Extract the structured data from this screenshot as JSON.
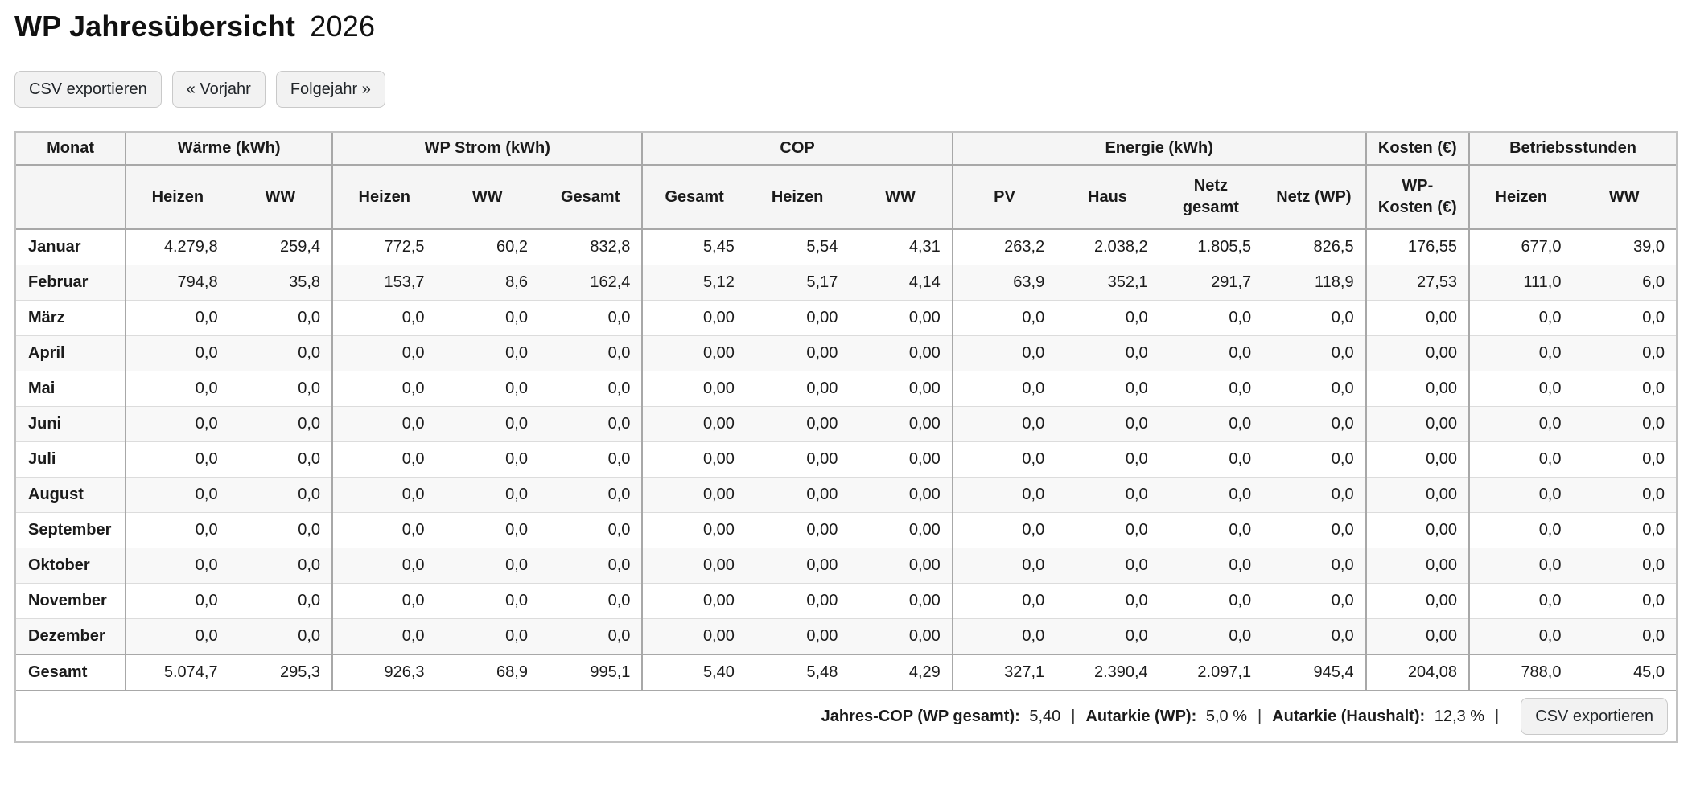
{
  "page": {
    "title_main": "WP Jahresübersicht",
    "title_year": "2026"
  },
  "toolbar": {
    "export_csv_label": "CSV exportieren",
    "prev_year_label": "« Vorjahr",
    "next_year_label": "Folgejahr »"
  },
  "table": {
    "group_headers": [
      {
        "label": "Monat",
        "colspan": 1
      },
      {
        "label": "Wärme (kWh)",
        "colspan": 2
      },
      {
        "label": "WP Strom (kWh)",
        "colspan": 3
      },
      {
        "label": "COP",
        "colspan": 3
      },
      {
        "label": "Energie (kWh)",
        "colspan": 4
      },
      {
        "label": "Kosten (€)",
        "colspan": 1
      },
      {
        "label": "Betriebsstunden",
        "colspan": 2
      }
    ],
    "sub_headers": [
      "",
      "Heizen",
      "WW",
      "Heizen",
      "WW",
      "Gesamt",
      "Gesamt",
      "Heizen",
      "WW",
      "PV",
      "Haus",
      "Netz gesamt",
      "Netz (WP)",
      "WP-Kosten (€)",
      "Heizen",
      "WW"
    ],
    "rows": [
      {
        "month": "Januar",
        "values": [
          "4.279,8",
          "259,4",
          "772,5",
          "60,2",
          "832,8",
          "5,45",
          "5,54",
          "4,31",
          "263,2",
          "2.038,2",
          "1.805,5",
          "826,5",
          "176,55",
          "677,0",
          "39,0"
        ]
      },
      {
        "month": "Februar",
        "values": [
          "794,8",
          "35,8",
          "153,7",
          "8,6",
          "162,4",
          "5,12",
          "5,17",
          "4,14",
          "63,9",
          "352,1",
          "291,7",
          "118,9",
          "27,53",
          "111,0",
          "6,0"
        ]
      },
      {
        "month": "März",
        "values": [
          "0,0",
          "0,0",
          "0,0",
          "0,0",
          "0,0",
          "0,00",
          "0,00",
          "0,00",
          "0,0",
          "0,0",
          "0,0",
          "0,0",
          "0,00",
          "0,0",
          "0,0"
        ]
      },
      {
        "month": "April",
        "values": [
          "0,0",
          "0,0",
          "0,0",
          "0,0",
          "0,0",
          "0,00",
          "0,00",
          "0,00",
          "0,0",
          "0,0",
          "0,0",
          "0,0",
          "0,00",
          "0,0",
          "0,0"
        ]
      },
      {
        "month": "Mai",
        "values": [
          "0,0",
          "0,0",
          "0,0",
          "0,0",
          "0,0",
          "0,00",
          "0,00",
          "0,00",
          "0,0",
          "0,0",
          "0,0",
          "0,0",
          "0,00",
          "0,0",
          "0,0"
        ]
      },
      {
        "month": "Juni",
        "values": [
          "0,0",
          "0,0",
          "0,0",
          "0,0",
          "0,0",
          "0,00",
          "0,00",
          "0,00",
          "0,0",
          "0,0",
          "0,0",
          "0,0",
          "0,00",
          "0,0",
          "0,0"
        ]
      },
      {
        "month": "Juli",
        "values": [
          "0,0",
          "0,0",
          "0,0",
          "0,0",
          "0,0",
          "0,00",
          "0,00",
          "0,00",
          "0,0",
          "0,0",
          "0,0",
          "0,0",
          "0,00",
          "0,0",
          "0,0"
        ]
      },
      {
        "month": "August",
        "values": [
          "0,0",
          "0,0",
          "0,0",
          "0,0",
          "0,0",
          "0,00",
          "0,00",
          "0,00",
          "0,0",
          "0,0",
          "0,0",
          "0,0",
          "0,00",
          "0,0",
          "0,0"
        ]
      },
      {
        "month": "September",
        "values": [
          "0,0",
          "0,0",
          "0,0",
          "0,0",
          "0,0",
          "0,00",
          "0,00",
          "0,00",
          "0,0",
          "0,0",
          "0,0",
          "0,0",
          "0,00",
          "0,0",
          "0,0"
        ]
      },
      {
        "month": "Oktober",
        "values": [
          "0,0",
          "0,0",
          "0,0",
          "0,0",
          "0,0",
          "0,00",
          "0,00",
          "0,00",
          "0,0",
          "0,0",
          "0,0",
          "0,0",
          "0,00",
          "0,0",
          "0,0"
        ]
      },
      {
        "month": "November",
        "values": [
          "0,0",
          "0,0",
          "0,0",
          "0,0",
          "0,0",
          "0,00",
          "0,00",
          "0,00",
          "0,0",
          "0,0",
          "0,0",
          "0,0",
          "0,00",
          "0,0",
          "0,0"
        ]
      },
      {
        "month": "Dezember",
        "values": [
          "0,0",
          "0,0",
          "0,0",
          "0,0",
          "0,0",
          "0,00",
          "0,00",
          "0,00",
          "0,0",
          "0,0",
          "0,0",
          "0,0",
          "0,00",
          "0,0",
          "0,0"
        ]
      }
    ],
    "total_row": {
      "month": "Gesamt",
      "values": [
        "5.074,7",
        "295,3",
        "926,3",
        "68,9",
        "995,1",
        "5,40",
        "5,48",
        "4,29",
        "327,1",
        "2.390,4",
        "2.097,1",
        "945,4",
        "204,08",
        "788,0",
        "45,0"
      ]
    }
  },
  "footer": {
    "items": [
      {
        "label": "Jahres-COP (WP gesamt):",
        "value": "5,40"
      },
      {
        "label": "Autarkie (WP):",
        "value": "5,0 %"
      },
      {
        "label": "Autarkie (Haushalt):",
        "value": "12,3 %"
      }
    ],
    "separator": "|",
    "export_csv_label": "CSV exportieren"
  }
}
